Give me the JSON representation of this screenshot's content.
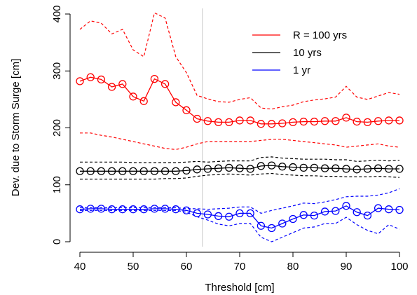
{
  "chart_data": {
    "type": "line",
    "xlabel": "Threshold [cm]",
    "ylabel": "Dev. due to Storm Surge [cm]",
    "xlim": [
      40,
      100
    ],
    "ylim": [
      0,
      400
    ],
    "xticks": [
      40,
      50,
      60,
      70,
      80,
      90,
      100
    ],
    "yticks": [
      0,
      100,
      200,
      300,
      400
    ],
    "vline": 63,
    "grid": false,
    "legend_position": "top-right",
    "x": [
      40,
      42,
      44,
      46,
      48,
      50,
      52,
      54,
      56,
      58,
      60,
      62,
      64,
      66,
      68,
      70,
      72,
      74,
      76,
      78,
      80,
      82,
      84,
      86,
      88,
      90,
      92,
      94,
      96,
      98,
      100
    ],
    "series": [
      {
        "name": "R = 100 yrs",
        "color": "#ff0000",
        "values": [
          282,
          289,
          285,
          272,
          277,
          255,
          247,
          286,
          277,
          245,
          231,
          216,
          212,
          210,
          210,
          213,
          213,
          207,
          207,
          208,
          210,
          211,
          211,
          212,
          212,
          218,
          211,
          210,
          212,
          213,
          213
        ],
        "upper": [
          373,
          388,
          384,
          365,
          373,
          337,
          325,
          402,
          393,
          325,
          297,
          257,
          251,
          246,
          245,
          250,
          253,
          235,
          233,
          237,
          240,
          246,
          249,
          251,
          254,
          273,
          254,
          250,
          256,
          262,
          259
        ],
        "lower": [
          191,
          191,
          187,
          184,
          180,
          176,
          172,
          168,
          164,
          162,
          166,
          172,
          176,
          176,
          176,
          176,
          176,
          178,
          180,
          180,
          178,
          176,
          174,
          172,
          170,
          166,
          168,
          170,
          172,
          168,
          166
        ]
      },
      {
        "name": "10 yrs",
        "color": "#000000",
        "values": [
          124,
          124,
          124,
          124,
          124,
          124,
          124,
          124,
          124,
          124,
          125,
          127,
          128,
          129,
          130,
          129,
          128,
          133,
          134,
          132,
          131,
          130,
          130,
          129,
          129,
          128,
          127,
          128,
          129,
          128,
          128
        ],
        "upper": [
          140,
          140,
          140,
          140,
          140,
          139,
          139,
          139,
          139,
          139,
          140,
          141,
          140,
          141,
          142,
          142,
          142,
          148,
          149,
          147,
          146,
          145,
          145,
          145,
          144,
          144,
          141,
          142,
          143,
          142,
          143
        ],
        "lower": [
          110,
          110,
          110,
          110,
          110,
          110,
          110,
          110,
          111,
          111,
          112,
          115,
          117,
          118,
          119,
          118,
          117,
          119,
          120,
          118,
          117,
          116,
          116,
          115,
          115,
          114,
          114,
          114,
          115,
          114,
          113
        ]
      },
      {
        "name": "1 yr",
        "color": "#0000ff",
        "values": [
          57,
          58,
          58,
          57,
          57,
          57,
          57,
          58,
          58,
          57,
          55,
          50,
          48,
          45,
          44,
          50,
          50,
          28,
          24,
          32,
          40,
          47,
          46,
          53,
          54,
          63,
          52,
          46,
          59,
          57,
          56
        ],
        "upper": [
          60,
          60,
          60,
          60,
          60,
          60,
          60,
          60,
          60,
          60,
          58,
          58,
          57,
          58,
          59,
          61,
          61,
          50,
          55,
          59,
          63,
          68,
          67,
          70,
          74,
          79,
          80,
          80,
          82,
          86,
          93
        ],
        "lower": [
          55,
          55,
          55,
          55,
          55,
          55,
          55,
          55,
          55,
          55,
          52,
          44,
          38,
          31,
          28,
          32,
          32,
          8,
          0,
          8,
          16,
          24,
          26,
          32,
          32,
          43,
          30,
          20,
          14,
          30,
          22
        ]
      }
    ]
  }
}
